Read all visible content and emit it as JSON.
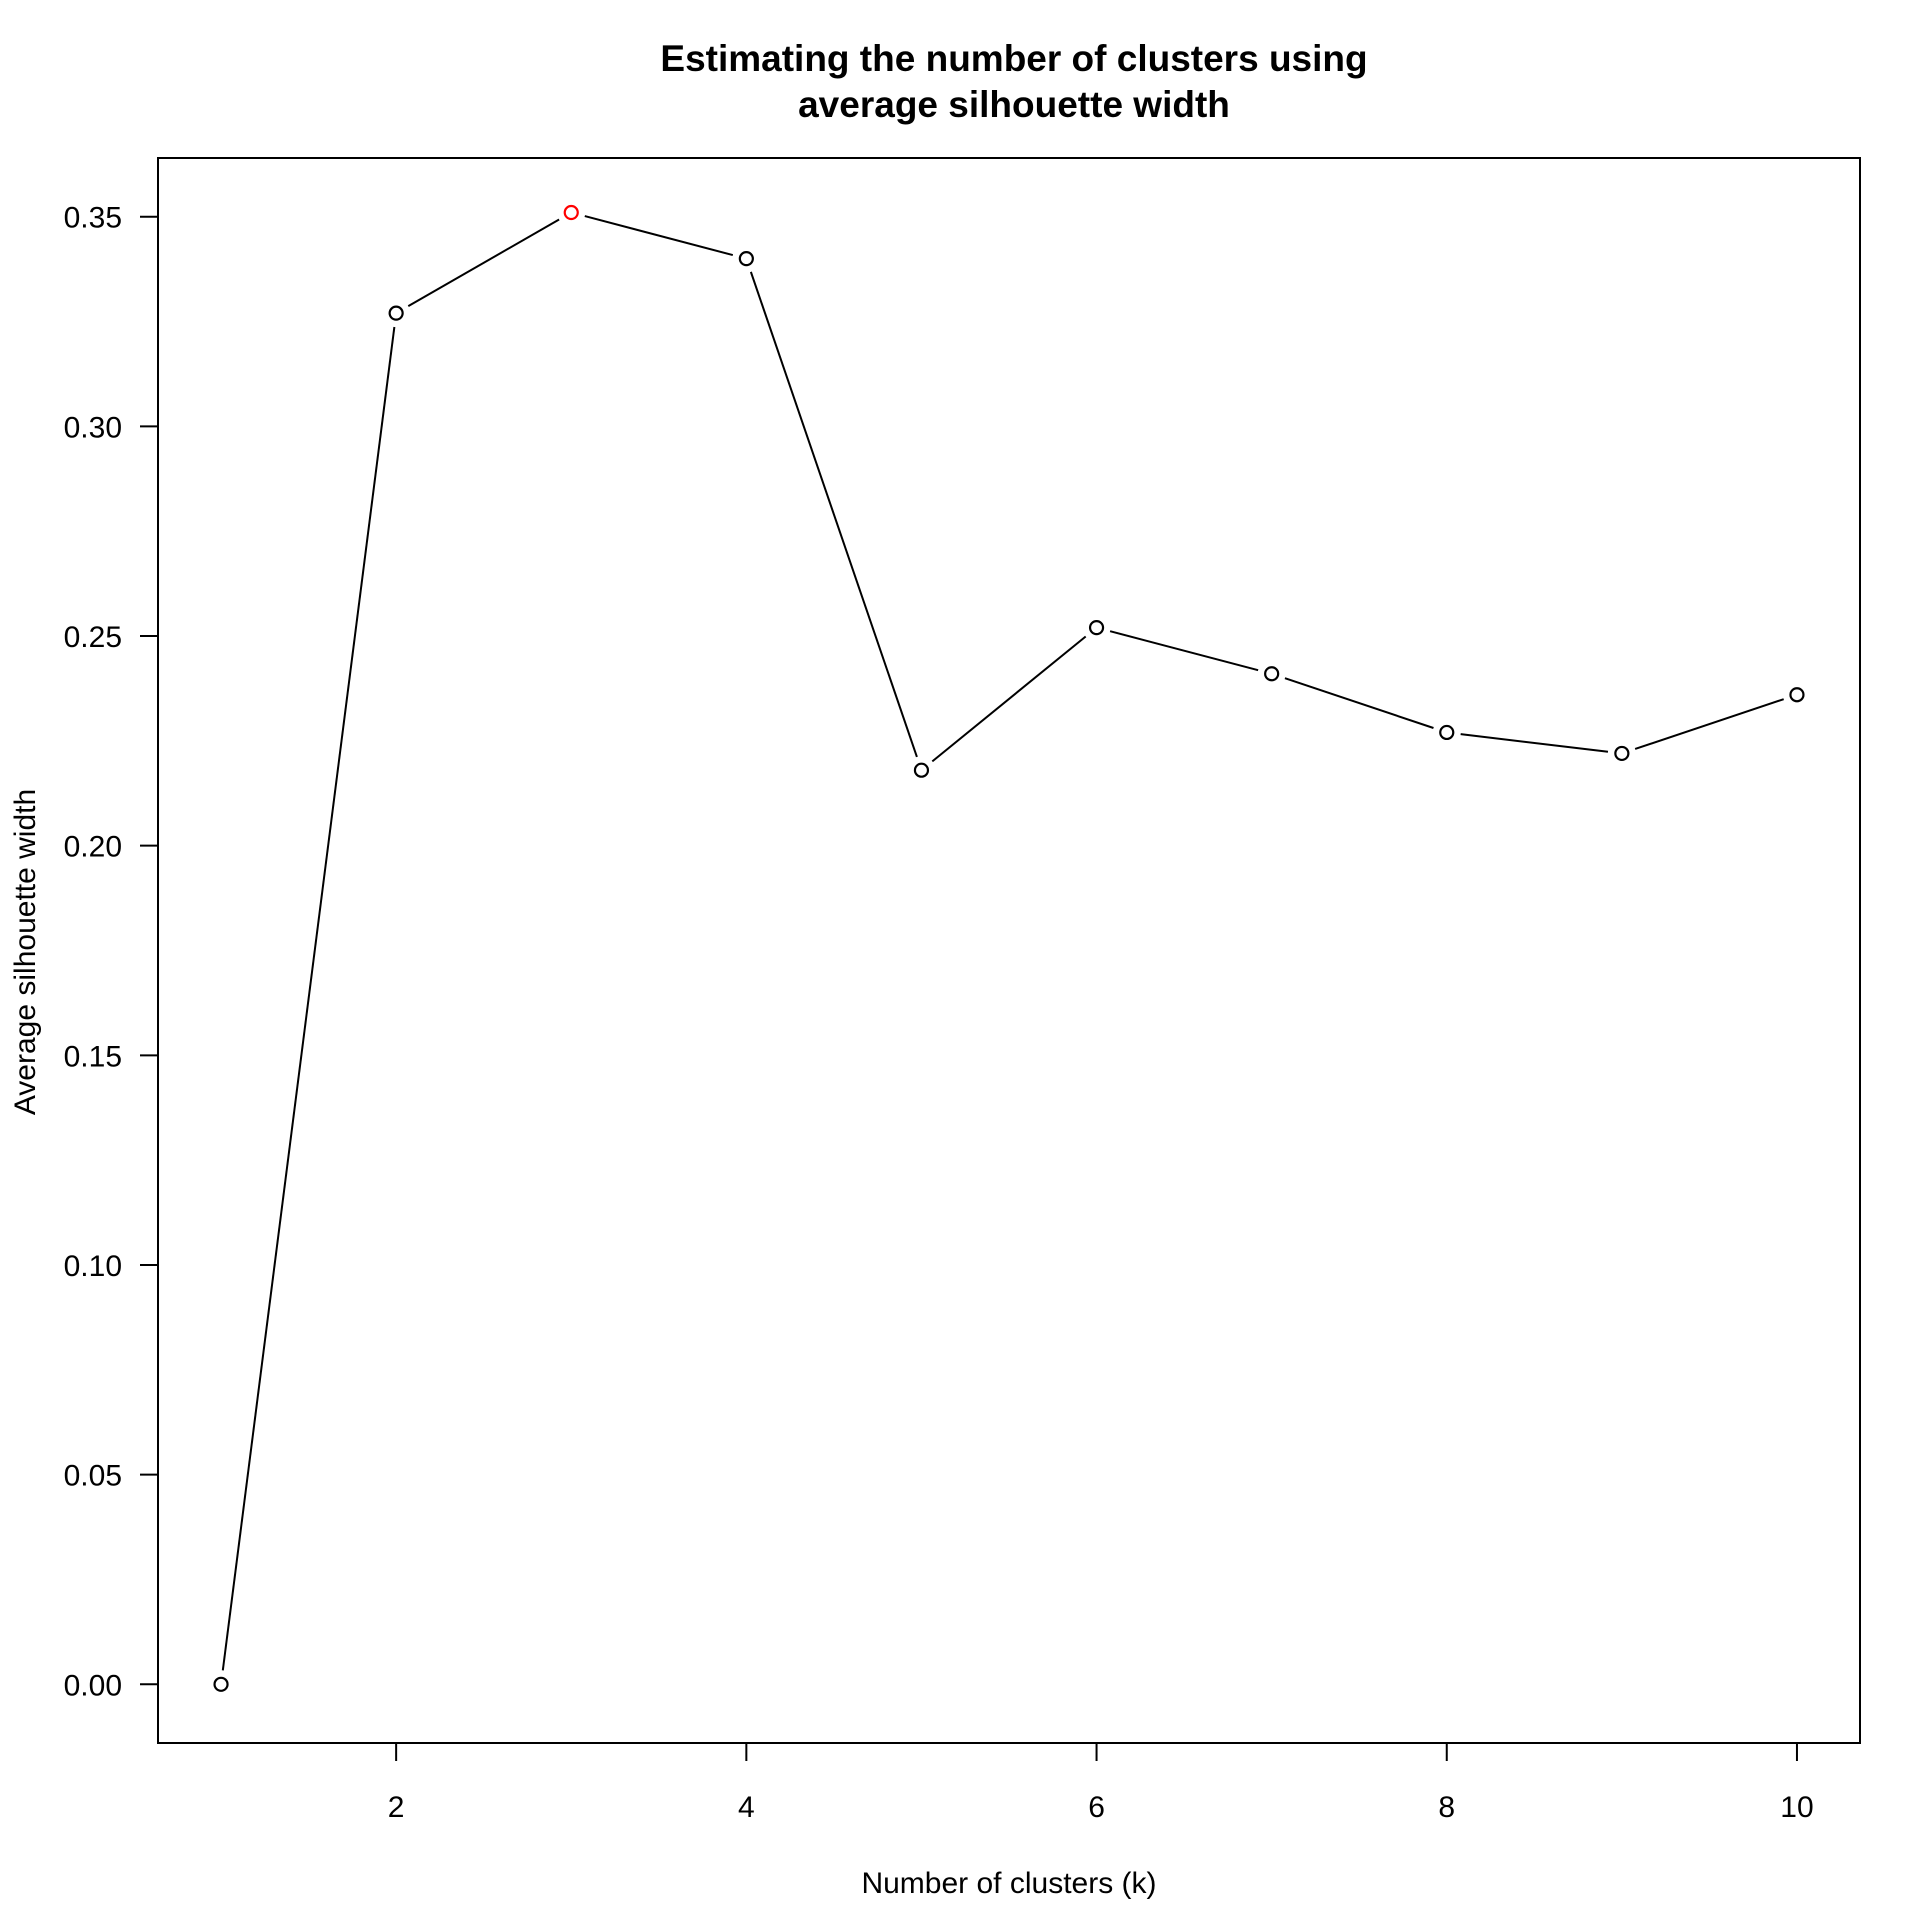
{
  "chart_data": {
    "type": "line",
    "title": [
      "Estimating the number of clusters using",
      "average silhouette width"
    ],
    "xlabel": "Number of clusters (k)",
    "ylabel": "Average silhouette width",
    "x": [
      1,
      2,
      3,
      4,
      5,
      6,
      7,
      8,
      9,
      10
    ],
    "series": [
      {
        "values": [
          0.0,
          0.327,
          0.351,
          0.34,
          0.218,
          0.252,
          0.241,
          0.227,
          0.222,
          0.236
        ]
      }
    ],
    "highlight": {
      "x": 3,
      "y": 0.351,
      "color": "#ff0000"
    },
    "xlim": [
      0.64,
      10.36
    ],
    "ylim": [
      -0.014,
      0.364
    ],
    "xticks": [
      2,
      4,
      6,
      8,
      10
    ],
    "xtick_labels": [
      "2",
      "4",
      "6",
      "8",
      "10"
    ],
    "yticks": [
      0.0,
      0.05,
      0.1,
      0.15,
      0.2,
      0.25,
      0.3,
      0.35
    ],
    "ytick_labels": [
      "0.00",
      "0.05",
      "0.10",
      "0.15",
      "0.20",
      "0.25",
      "0.30",
      "0.35"
    ],
    "grid": false,
    "line_color": "#000000",
    "point_color": "#000000"
  }
}
